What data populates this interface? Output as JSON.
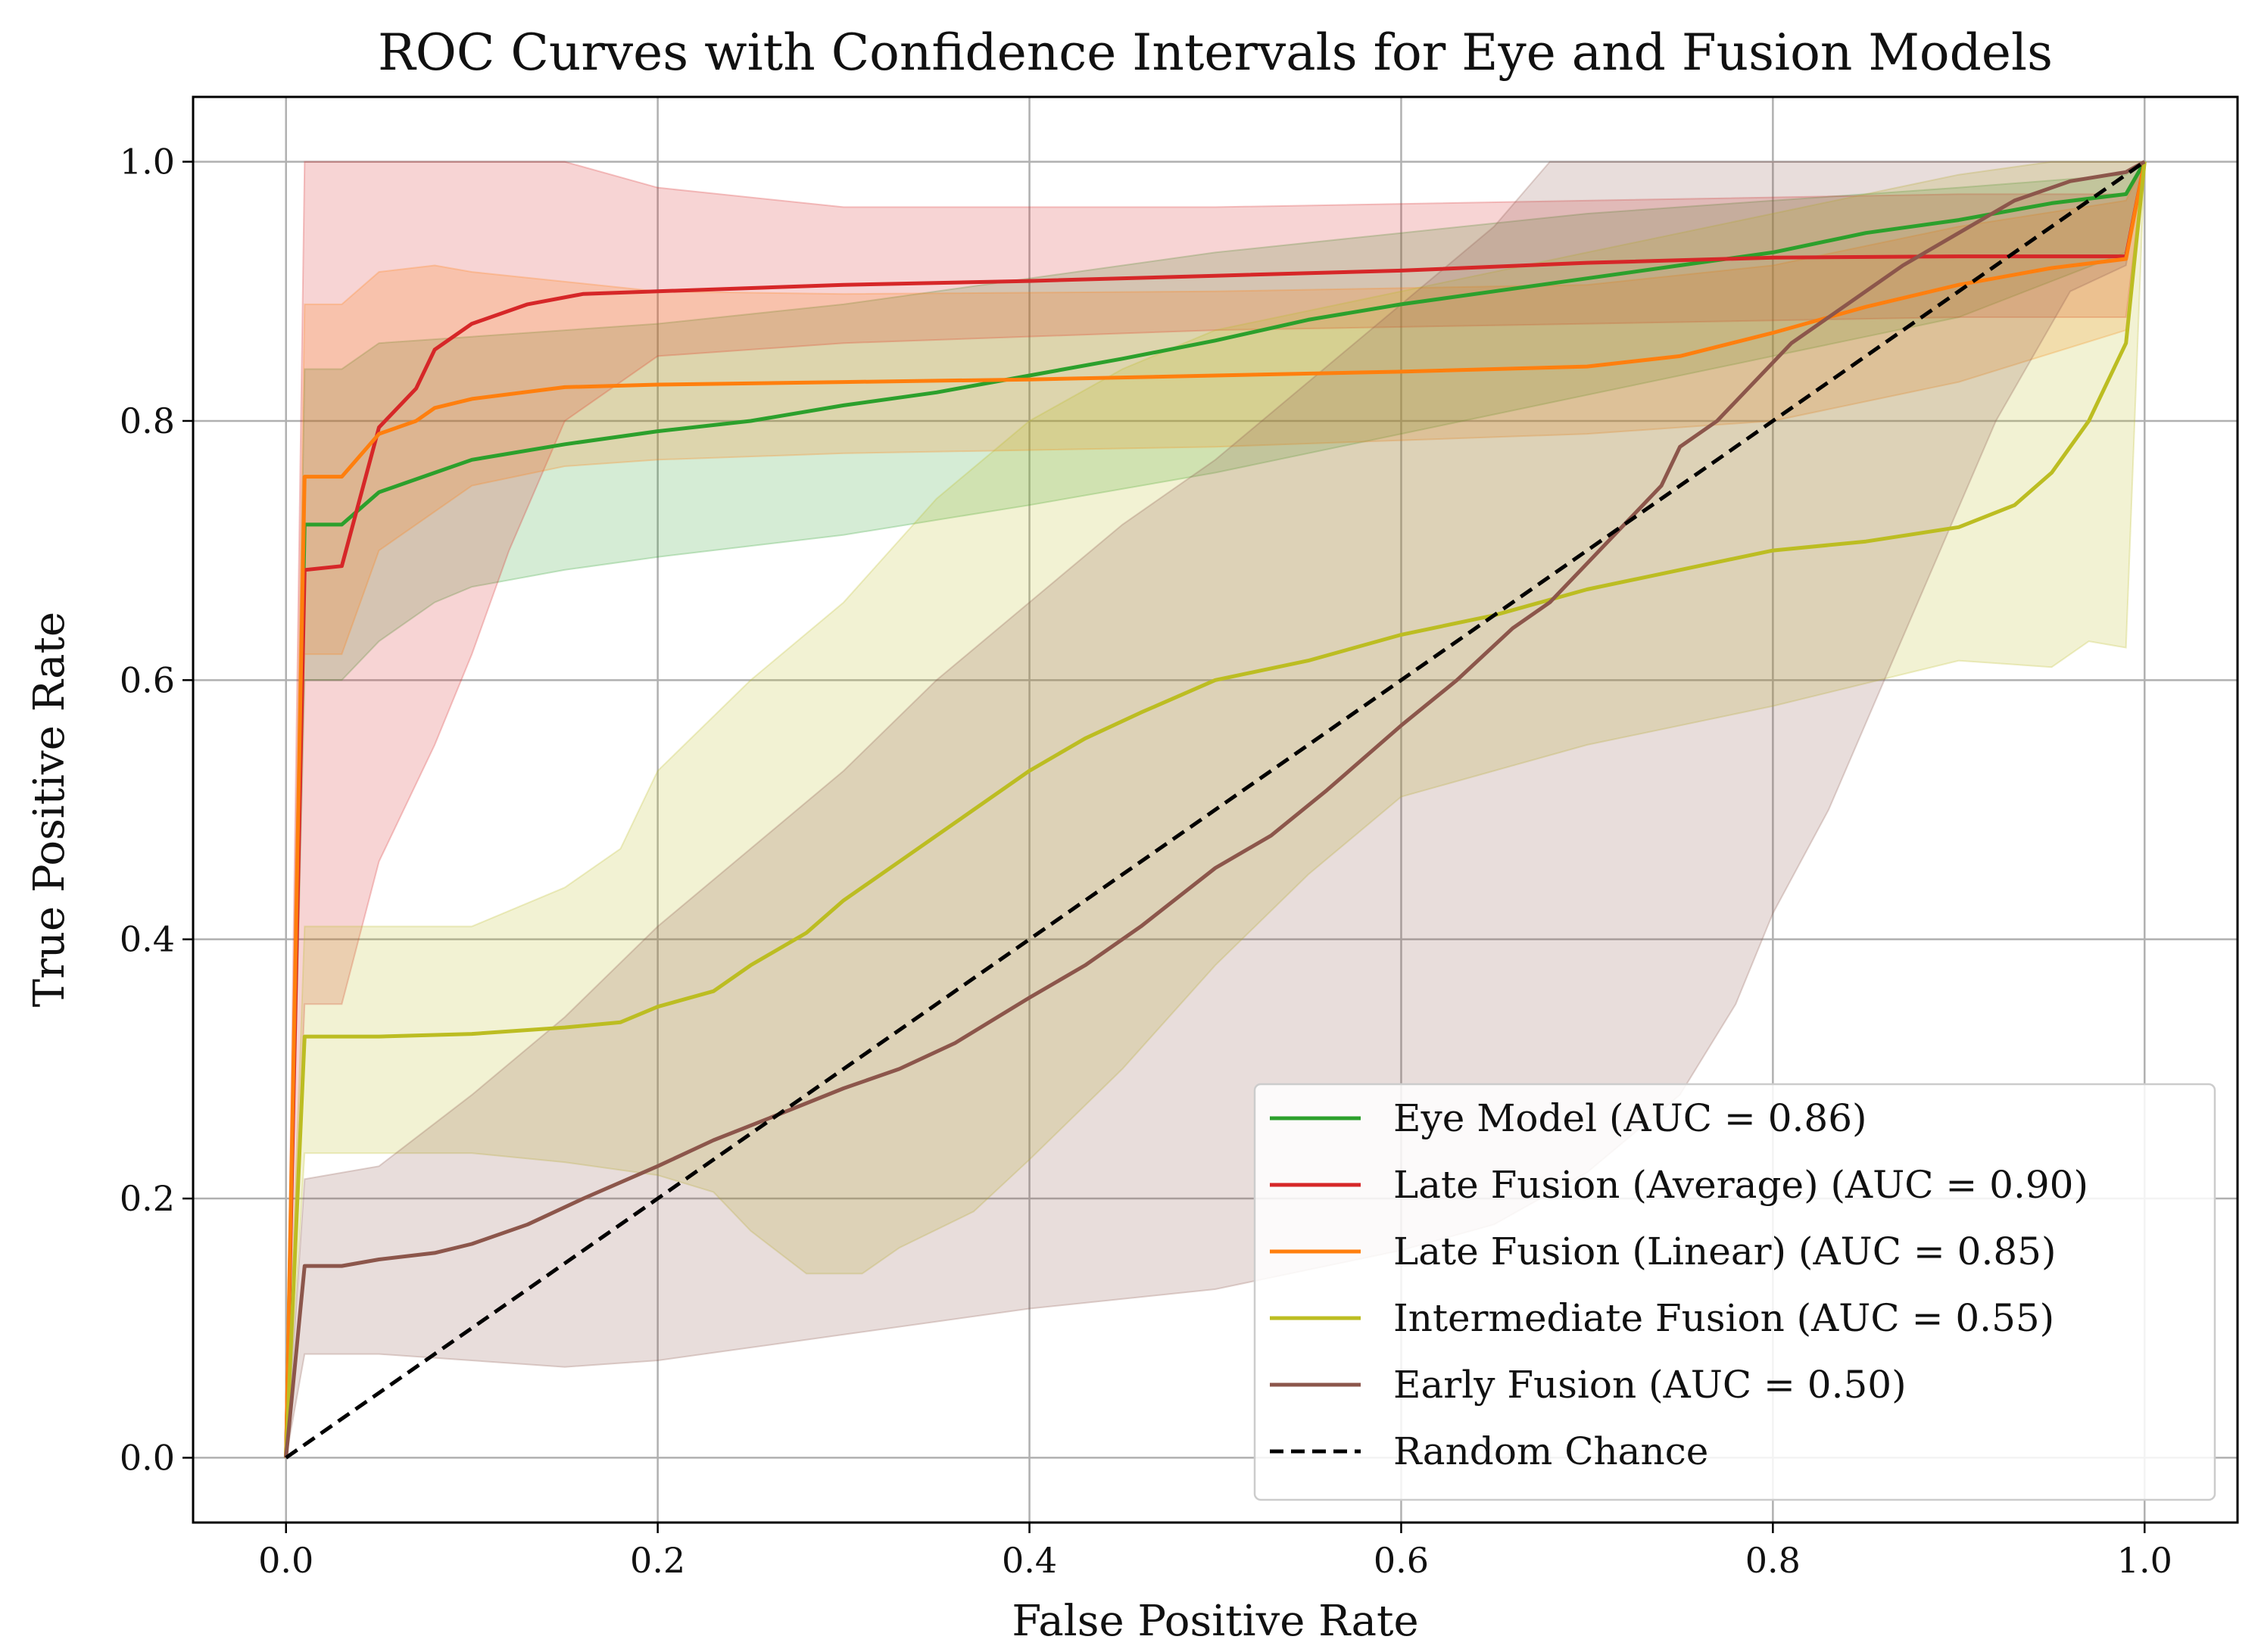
{
  "chart_data": {
    "type": "line",
    "title": "ROC Curves with Confidence Intervals for Eye and Fusion Models",
    "xlabel": "False Positive Rate",
    "ylabel": "True Positive Rate",
    "xlim": [
      -0.05,
      1.05
    ],
    "ylim": [
      -0.05,
      1.05
    ],
    "grid": true,
    "legend_position": "lower-right",
    "xticks": [
      0.0,
      0.2,
      0.4,
      0.6,
      0.8,
      1.0
    ],
    "yticks": [
      0.0,
      0.2,
      0.4,
      0.6,
      0.8,
      1.0
    ],
    "xtick_labels": [
      "0.0",
      "0.2",
      "0.4",
      "0.6",
      "0.8",
      "1.0"
    ],
    "ytick_labels": [
      "0.0",
      "0.2",
      "0.4",
      "0.6",
      "0.8",
      "1.0"
    ],
    "series": [
      {
        "name": "Eye Model (AUC = 0.86)",
        "color": "#2ca02c",
        "line_style": "solid",
        "points": [
          [
            0,
            0
          ],
          [
            0.01,
            0.72
          ],
          [
            0.03,
            0.72
          ],
          [
            0.05,
            0.745
          ],
          [
            0.08,
            0.76
          ],
          [
            0.1,
            0.77
          ],
          [
            0.15,
            0.782
          ],
          [
            0.2,
            0.792
          ],
          [
            0.25,
            0.8
          ],
          [
            0.3,
            0.812
          ],
          [
            0.35,
            0.822
          ],
          [
            0.4,
            0.835
          ],
          [
            0.45,
            0.848
          ],
          [
            0.5,
            0.862
          ],
          [
            0.55,
            0.878
          ],
          [
            0.6,
            0.89
          ],
          [
            0.65,
            0.9
          ],
          [
            0.7,
            0.91
          ],
          [
            0.75,
            0.92
          ],
          [
            0.8,
            0.93
          ],
          [
            0.85,
            0.945
          ],
          [
            0.9,
            0.955
          ],
          [
            0.95,
            0.968
          ],
          [
            0.99,
            0.975
          ],
          [
            1.0,
            1.0
          ]
        ],
        "ci_lower": [
          [
            0,
            0
          ],
          [
            0.01,
            0.6
          ],
          [
            0.03,
            0.6
          ],
          [
            0.05,
            0.63
          ],
          [
            0.08,
            0.66
          ],
          [
            0.1,
            0.672
          ],
          [
            0.15,
            0.685
          ],
          [
            0.2,
            0.695
          ],
          [
            0.3,
            0.712
          ],
          [
            0.4,
            0.735
          ],
          [
            0.5,
            0.76
          ],
          [
            0.6,
            0.79
          ],
          [
            0.7,
            0.82
          ],
          [
            0.8,
            0.85
          ],
          [
            0.9,
            0.88
          ],
          [
            0.99,
            0.93
          ],
          [
            1.0,
            1.0
          ]
        ],
        "ci_upper": [
          [
            0,
            0
          ],
          [
            0.01,
            0.84
          ],
          [
            0.03,
            0.84
          ],
          [
            0.05,
            0.86
          ],
          [
            0.1,
            0.865
          ],
          [
            0.2,
            0.875
          ],
          [
            0.3,
            0.89
          ],
          [
            0.4,
            0.91
          ],
          [
            0.5,
            0.93
          ],
          [
            0.6,
            0.945
          ],
          [
            0.7,
            0.96
          ],
          [
            0.8,
            0.97
          ],
          [
            0.9,
            0.98
          ],
          [
            0.99,
            0.99
          ],
          [
            1.0,
            1.0
          ]
        ]
      },
      {
        "name": "Late Fusion (Average) (AUC = 0.90)",
        "color": "#d62728",
        "line_style": "solid",
        "points": [
          [
            0,
            0
          ],
          [
            0.01,
            0.685
          ],
          [
            0.03,
            0.688
          ],
          [
            0.05,
            0.795
          ],
          [
            0.07,
            0.825
          ],
          [
            0.08,
            0.855
          ],
          [
            0.1,
            0.875
          ],
          [
            0.13,
            0.89
          ],
          [
            0.16,
            0.898
          ],
          [
            0.2,
            0.9
          ],
          [
            0.3,
            0.905
          ],
          [
            0.4,
            0.908
          ],
          [
            0.5,
            0.912
          ],
          [
            0.6,
            0.916
          ],
          [
            0.7,
            0.922
          ],
          [
            0.8,
            0.926
          ],
          [
            0.9,
            0.927
          ],
          [
            0.99,
            0.927
          ],
          [
            1.0,
            1.0
          ]
        ],
        "ci_lower": [
          [
            0,
            0
          ],
          [
            0.01,
            0.35
          ],
          [
            0.03,
            0.35
          ],
          [
            0.05,
            0.46
          ],
          [
            0.08,
            0.55
          ],
          [
            0.1,
            0.62
          ],
          [
            0.12,
            0.7
          ],
          [
            0.15,
            0.8
          ],
          [
            0.2,
            0.85
          ],
          [
            0.3,
            0.86
          ],
          [
            0.5,
            0.87
          ],
          [
            0.7,
            0.875
          ],
          [
            0.9,
            0.88
          ],
          [
            0.99,
            0.88
          ],
          [
            1.0,
            1.0
          ]
        ],
        "ci_upper": [
          [
            0,
            0
          ],
          [
            0.01,
            1.0
          ],
          [
            0.15,
            1.0
          ],
          [
            0.2,
            0.98
          ],
          [
            0.3,
            0.965
          ],
          [
            0.5,
            0.965
          ],
          [
            0.7,
            0.97
          ],
          [
            0.9,
            0.975
          ],
          [
            0.99,
            0.975
          ],
          [
            1.0,
            1.0
          ]
        ]
      },
      {
        "name": "Late Fusion (Linear) (AUC = 0.85)",
        "color": "#ff7f0e",
        "line_style": "solid",
        "points": [
          [
            0,
            0
          ],
          [
            0.01,
            0.757
          ],
          [
            0.03,
            0.757
          ],
          [
            0.05,
            0.79
          ],
          [
            0.07,
            0.8
          ],
          [
            0.08,
            0.81
          ],
          [
            0.1,
            0.817
          ],
          [
            0.15,
            0.826
          ],
          [
            0.2,
            0.828
          ],
          [
            0.3,
            0.83
          ],
          [
            0.4,
            0.832
          ],
          [
            0.5,
            0.835
          ],
          [
            0.6,
            0.838
          ],
          [
            0.7,
            0.842
          ],
          [
            0.75,
            0.85
          ],
          [
            0.8,
            0.868
          ],
          [
            0.85,
            0.888
          ],
          [
            0.9,
            0.905
          ],
          [
            0.95,
            0.918
          ],
          [
            0.99,
            0.925
          ],
          [
            1.0,
            1.0
          ]
        ],
        "ci_lower": [
          [
            0,
            0
          ],
          [
            0.01,
            0.62
          ],
          [
            0.03,
            0.62
          ],
          [
            0.05,
            0.7
          ],
          [
            0.1,
            0.75
          ],
          [
            0.15,
            0.765
          ],
          [
            0.2,
            0.77
          ],
          [
            0.3,
            0.775
          ],
          [
            0.5,
            0.78
          ],
          [
            0.7,
            0.79
          ],
          [
            0.8,
            0.8
          ],
          [
            0.9,
            0.83
          ],
          [
            0.99,
            0.87
          ],
          [
            1.0,
            1.0
          ]
        ],
        "ci_upper": [
          [
            0,
            0
          ],
          [
            0.01,
            0.89
          ],
          [
            0.03,
            0.89
          ],
          [
            0.05,
            0.915
          ],
          [
            0.08,
            0.92
          ],
          [
            0.1,
            0.915
          ],
          [
            0.2,
            0.9
          ],
          [
            0.3,
            0.898
          ],
          [
            0.5,
            0.9
          ],
          [
            0.7,
            0.905
          ],
          [
            0.8,
            0.92
          ],
          [
            0.9,
            0.95
          ],
          [
            0.99,
            0.97
          ],
          [
            1.0,
            1.0
          ]
        ]
      },
      {
        "name": "Intermediate Fusion (AUC = 0.55)",
        "color": "#bcbd22",
        "line_style": "solid",
        "points": [
          [
            0,
            0
          ],
          [
            0.01,
            0.325
          ],
          [
            0.05,
            0.325
          ],
          [
            0.1,
            0.327
          ],
          [
            0.15,
            0.332
          ],
          [
            0.18,
            0.336
          ],
          [
            0.2,
            0.348
          ],
          [
            0.23,
            0.36
          ],
          [
            0.25,
            0.38
          ],
          [
            0.28,
            0.405
          ],
          [
            0.3,
            0.43
          ],
          [
            0.33,
            0.46
          ],
          [
            0.36,
            0.49
          ],
          [
            0.4,
            0.53
          ],
          [
            0.43,
            0.555
          ],
          [
            0.46,
            0.575
          ],
          [
            0.5,
            0.6
          ],
          [
            0.55,
            0.615
          ],
          [
            0.6,
            0.635
          ],
          [
            0.65,
            0.65
          ],
          [
            0.7,
            0.67
          ],
          [
            0.75,
            0.685
          ],
          [
            0.8,
            0.7
          ],
          [
            0.85,
            0.707
          ],
          [
            0.9,
            0.718
          ],
          [
            0.93,
            0.735
          ],
          [
            0.95,
            0.76
          ],
          [
            0.97,
            0.8
          ],
          [
            0.99,
            0.86
          ],
          [
            1.0,
            1.0
          ]
        ],
        "ci_lower": [
          [
            0,
            0
          ],
          [
            0.01,
            0.235
          ],
          [
            0.1,
            0.235
          ],
          [
            0.15,
            0.228
          ],
          [
            0.2,
            0.218
          ],
          [
            0.23,
            0.205
          ],
          [
            0.25,
            0.175
          ],
          [
            0.28,
            0.142
          ],
          [
            0.31,
            0.142
          ],
          [
            0.33,
            0.162
          ],
          [
            0.37,
            0.19
          ],
          [
            0.4,
            0.23
          ],
          [
            0.45,
            0.3
          ],
          [
            0.5,
            0.38
          ],
          [
            0.55,
            0.45
          ],
          [
            0.6,
            0.51
          ],
          [
            0.65,
            0.53
          ],
          [
            0.7,
            0.55
          ],
          [
            0.8,
            0.58
          ],
          [
            0.9,
            0.615
          ],
          [
            0.95,
            0.61
          ],
          [
            0.97,
            0.63
          ],
          [
            0.99,
            0.625
          ],
          [
            1.0,
            1.0
          ]
        ],
        "ci_upper": [
          [
            0,
            0
          ],
          [
            0.01,
            0.41
          ],
          [
            0.1,
            0.41
          ],
          [
            0.15,
            0.44
          ],
          [
            0.18,
            0.47
          ],
          [
            0.2,
            0.53
          ],
          [
            0.25,
            0.6
          ],
          [
            0.3,
            0.66
          ],
          [
            0.35,
            0.74
          ],
          [
            0.4,
            0.8
          ],
          [
            0.45,
            0.84
          ],
          [
            0.5,
            0.87
          ],
          [
            0.6,
            0.9
          ],
          [
            0.7,
            0.93
          ],
          [
            0.8,
            0.96
          ],
          [
            0.9,
            0.99
          ],
          [
            0.95,
            1.0
          ],
          [
            1.0,
            1.0
          ]
        ]
      },
      {
        "name": "Early Fusion (AUC = 0.50)",
        "color": "#8c564b",
        "line_style": "solid",
        "points": [
          [
            0,
            0
          ],
          [
            0.01,
            0.148
          ],
          [
            0.03,
            0.148
          ],
          [
            0.05,
            0.153
          ],
          [
            0.08,
            0.158
          ],
          [
            0.1,
            0.165
          ],
          [
            0.13,
            0.18
          ],
          [
            0.16,
            0.2
          ],
          [
            0.2,
            0.225
          ],
          [
            0.23,
            0.245
          ],
          [
            0.26,
            0.262
          ],
          [
            0.3,
            0.285
          ],
          [
            0.33,
            0.3
          ],
          [
            0.36,
            0.32
          ],
          [
            0.4,
            0.355
          ],
          [
            0.43,
            0.38
          ],
          [
            0.46,
            0.41
          ],
          [
            0.5,
            0.455
          ],
          [
            0.53,
            0.48
          ],
          [
            0.56,
            0.515
          ],
          [
            0.6,
            0.565
          ],
          [
            0.63,
            0.6
          ],
          [
            0.66,
            0.64
          ],
          [
            0.68,
            0.66
          ],
          [
            0.7,
            0.69
          ],
          [
            0.72,
            0.72
          ],
          [
            0.74,
            0.75
          ],
          [
            0.75,
            0.78
          ],
          [
            0.77,
            0.8
          ],
          [
            0.79,
            0.83
          ],
          [
            0.81,
            0.86
          ],
          [
            0.84,
            0.89
          ],
          [
            0.87,
            0.92
          ],
          [
            0.9,
            0.945
          ],
          [
            0.93,
            0.97
          ],
          [
            0.96,
            0.985
          ],
          [
            0.99,
            0.992
          ],
          [
            1.0,
            1.0
          ]
        ],
        "ci_lower": [
          [
            0,
            0
          ],
          [
            0.01,
            0.08
          ],
          [
            0.05,
            0.08
          ],
          [
            0.1,
            0.075
          ],
          [
            0.15,
            0.07
          ],
          [
            0.2,
            0.075
          ],
          [
            0.3,
            0.095
          ],
          [
            0.4,
            0.115
          ],
          [
            0.5,
            0.13
          ],
          [
            0.6,
            0.16
          ],
          [
            0.65,
            0.18
          ],
          [
            0.7,
            0.22
          ],
          [
            0.75,
            0.28
          ],
          [
            0.78,
            0.35
          ],
          [
            0.8,
            0.42
          ],
          [
            0.83,
            0.5
          ],
          [
            0.86,
            0.6
          ],
          [
            0.89,
            0.7
          ],
          [
            0.92,
            0.8
          ],
          [
            0.96,
            0.9
          ],
          [
            0.99,
            0.92
          ],
          [
            1.0,
            1.0
          ]
        ],
        "ci_upper": [
          [
            0,
            0
          ],
          [
            0.01,
            0.215
          ],
          [
            0.05,
            0.225
          ],
          [
            0.1,
            0.28
          ],
          [
            0.15,
            0.34
          ],
          [
            0.2,
            0.41
          ],
          [
            0.25,
            0.47
          ],
          [
            0.3,
            0.53
          ],
          [
            0.35,
            0.6
          ],
          [
            0.4,
            0.66
          ],
          [
            0.45,
            0.72
          ],
          [
            0.5,
            0.77
          ],
          [
            0.55,
            0.83
          ],
          [
            0.6,
            0.89
          ],
          [
            0.65,
            0.95
          ],
          [
            0.68,
            1.0
          ],
          [
            1.0,
            1.0
          ]
        ]
      },
      {
        "name": "Random Chance",
        "color": "#000000",
        "line_style": "dashed",
        "points": [
          [
            0,
            0
          ],
          [
            1,
            1
          ]
        ]
      }
    ]
  }
}
